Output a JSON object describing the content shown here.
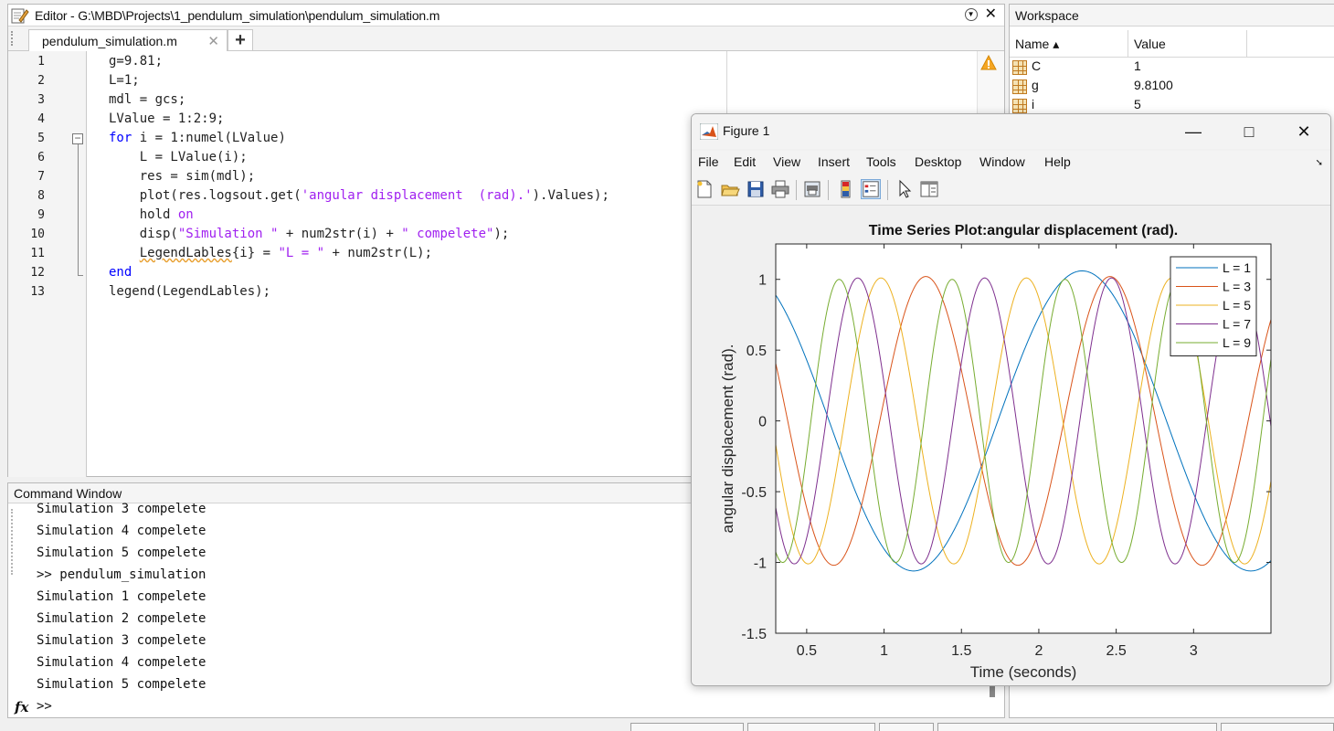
{
  "editor": {
    "title": "Editor - G:\\MBD\\Projects\\1_pendulum_simulation\\pendulum_simulation.m",
    "tab_label": "pendulum_simulation.m",
    "tab_add_label": "+",
    "line_numbers": [
      "1",
      "2",
      "3",
      "4",
      "5",
      "6",
      "7",
      "8",
      "9",
      "10",
      "11",
      "12",
      "13"
    ],
    "code": {
      "l1": "g=9.81;",
      "l2": "L=1;",
      "l3": "mdl = gcs;",
      "l4": "LValue = 1:2:9;",
      "l5_kw": "for",
      "l5_rest": " i = 1:numel(LValue)",
      "l6": "    L = LValue(i);",
      "l7": "    res = sim(mdl);",
      "l8_a": "    plot(res.logsout.get(",
      "l8_str": "'angular displacement  (rad).'",
      "l8_b": ").Values);",
      "l9_a": "    hold ",
      "l9_kw": "on",
      "l10_a": "    disp(",
      "l10_str1": "\"Simulation \"",
      "l10_b": " + num2str(i) + ",
      "l10_str2": "\" compelete\"",
      "l10_c": ");",
      "l11_a": "    ",
      "l11_squig": "LegendLables",
      "l11_b": "{i} = ",
      "l11_str": "\"L = \"",
      "l11_c": " + num2str(L);",
      "l12_kw": "end",
      "l13": "legend(LegendLables);"
    }
  },
  "command_window": {
    "title": "Command Window",
    "lines": [
      "Simulation 3 compelete",
      "Simulation 4 compelete",
      "Simulation 5 compelete",
      ">> pendulum_simulation",
      "Simulation 1 compelete",
      "Simulation 2 compelete",
      "Simulation 3 compelete",
      "Simulation 4 compelete",
      "Simulation 5 compelete"
    ],
    "fx_label": "fx",
    "prompt": ">>"
  },
  "workspace": {
    "title": "Workspace",
    "col_name": "Name ▴",
    "col_value": "Value",
    "rows": [
      {
        "name": "C",
        "value": "1"
      },
      {
        "name": "g",
        "value": "9.8100"
      },
      {
        "name": "i",
        "value": "5"
      }
    ]
  },
  "figure": {
    "title": "Figure 1",
    "minimize": "—",
    "maximize": "□",
    "close": "✕",
    "menu": [
      "File",
      "Edit",
      "View",
      "Insert",
      "Tools",
      "Desktop",
      "Window",
      "Help"
    ],
    "toolbar_icons": [
      "new-figure-icon",
      "open-file-icon",
      "save-icon",
      "print-icon",
      "print-preview-icon",
      "colorbar-icon",
      "legend-icon",
      "pointer-icon",
      "property-inspector-icon"
    ]
  },
  "colors": {
    "series": [
      "#0072BD",
      "#D95319",
      "#EDB120",
      "#7E2F8E",
      "#77AC30"
    ],
    "keyword": "#0000ff",
    "string": "#a020f0"
  },
  "chart_data": {
    "type": "line",
    "title": "Time Series Plot:angular displacement  (rad).",
    "xlabel": "Time (seconds)",
    "ylabel": "angular displacement  (rad).",
    "xlim": [
      0.3,
      3.5
    ],
    "ylim": [
      -1.5,
      1.25
    ],
    "xticks": [
      0.5,
      1,
      1.5,
      2,
      2.5,
      3
    ],
    "xtick_labels": [
      "0.5",
      "1",
      "1.5",
      "2",
      "2.5",
      "3"
    ],
    "yticks": [
      1,
      0.5,
      0,
      -0.5,
      -1,
      -1.5
    ],
    "ytick_labels": [
      "1",
      "0.5",
      "0",
      "-0.5",
      "-1",
      "-1.5"
    ],
    "grid": false,
    "legend_position": "top-right",
    "series": [
      {
        "name": "L = 1",
        "amplitude": 1.06,
        "period": 2.18,
        "peak_time": 2.28
      },
      {
        "name": "L = 3",
        "amplitude": 1.02,
        "period": 1.19,
        "peak_time": 1.27
      },
      {
        "name": "L = 5",
        "amplitude": 1.01,
        "period": 0.94,
        "peak_time": 0.98
      },
      {
        "name": "L = 7",
        "amplitude": 1.01,
        "period": 0.82,
        "peak_time": 0.83
      },
      {
        "name": "L = 9",
        "amplitude": 1.0,
        "period": 0.73,
        "peak_time": 0.71
      }
    ]
  }
}
